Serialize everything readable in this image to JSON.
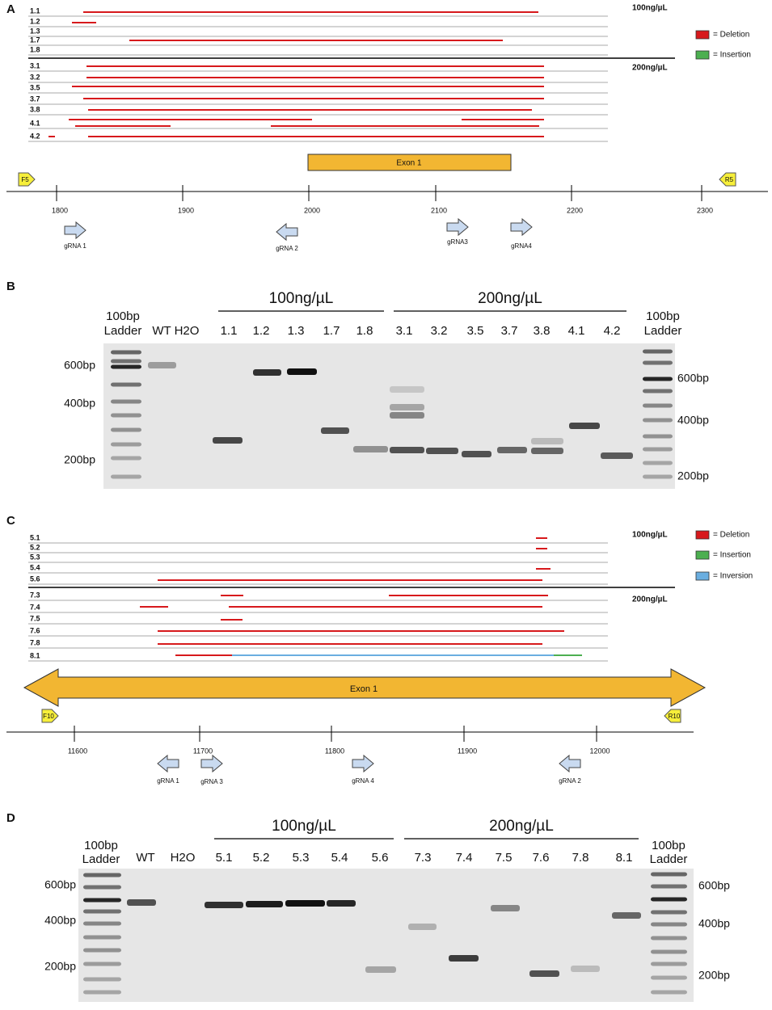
{
  "panel_a": {
    "label": "A",
    "groups": [
      {
        "concentration": "100ng/µL",
        "samples": [
          "1.1",
          "1.2",
          "1.3",
          "1.7",
          "1.8"
        ]
      },
      {
        "concentration": "200ng/µL",
        "samples": [
          "3.1",
          "3.2",
          "3.5",
          "3.7",
          "3.8",
          "4.1",
          "4.2"
        ]
      }
    ],
    "legend": [
      "= Deletion",
      "= Insertion"
    ],
    "exon": "Exon 1",
    "primers": [
      "F5",
      "R5"
    ],
    "axis_ticks": [
      1800,
      1900,
      2000,
      2100,
      2200,
      2300
    ],
    "grnas": [
      "gRNA 1",
      "gRNA 2",
      "gRNA3",
      "gRNA4"
    ]
  },
  "panel_b": {
    "label": "B",
    "concentrations": [
      "100ng/µL",
      "200ng/µL"
    ],
    "ladder_left": [
      "100bp",
      "Ladder"
    ],
    "ladder_right": [
      "100bp",
      "Ladder"
    ],
    "lanes": [
      "WT",
      "H2O",
      "1.1",
      "1.2",
      "1.3",
      "1.7",
      "1.8",
      "3.1",
      "3.2",
      "3.5",
      "3.7",
      "3.8",
      "4.1",
      "4.2"
    ],
    "size_left": [
      "600bp",
      "400bp",
      "200bp"
    ],
    "size_right": [
      "600bp",
      "400bp",
      "200bp"
    ]
  },
  "panel_c": {
    "label": "C",
    "groups": [
      {
        "concentration": "100ng/µL",
        "samples": [
          "5.1",
          "5.2",
          "5.3",
          "5.4",
          "5.6"
        ]
      },
      {
        "concentration": "200ng/µL",
        "samples": [
          "7.3",
          "7.4",
          "7.5",
          "7.6",
          "7.8",
          "8.1"
        ]
      }
    ],
    "legend": [
      "= Deletion",
      "= Insertion",
      "= Inversion"
    ],
    "exon": "Exon 1",
    "primers": [
      "F10",
      "R10"
    ],
    "axis_ticks": [
      11600,
      11700,
      11800,
      11900,
      12000
    ],
    "grnas": [
      "gRNA 1",
      "gRNA 3",
      "gRNA 4",
      "gRNA 2"
    ]
  },
  "panel_d": {
    "label": "D",
    "concentrations": [
      "100ng/µL",
      "200ng/µL"
    ],
    "ladder_left": [
      "100bp",
      "Ladder"
    ],
    "ladder_right": [
      "100bp",
      "Ladder"
    ],
    "lanes": [
      "WT",
      "H2O",
      "5.1",
      "5.2",
      "5.3",
      "5.4",
      "5.6",
      "7.3",
      "7.4",
      "7.5",
      "7.6",
      "7.8",
      "8.1"
    ],
    "size_left": [
      "600bp",
      "400bp",
      "200bp"
    ],
    "size_right": [
      "600bp",
      "400bp",
      "200bp"
    ]
  }
}
